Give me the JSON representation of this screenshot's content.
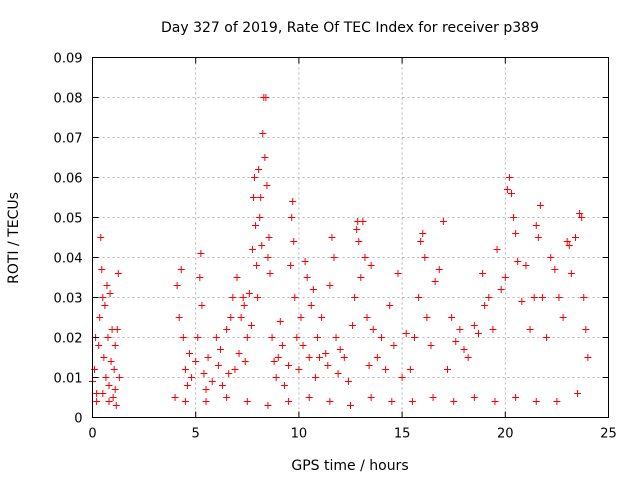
{
  "chart_data": {
    "type": "scatter",
    "title": "Day 327 of 2019, Rate Of TEC Index for receiver p389",
    "xlabel": "GPS time / hours",
    "ylabel": "ROTI / TECUs",
    "xlim": [
      0,
      25
    ],
    "ylim": [
      0,
      0.09
    ],
    "x_ticks": [
      0,
      5,
      10,
      15,
      20,
      25
    ],
    "x_tick_labels": [
      "0",
      "5",
      "10",
      "15",
      "20",
      "25"
    ],
    "y_ticks": [
      0,
      0.01,
      0.02,
      0.03,
      0.04,
      0.05,
      0.06,
      0.07,
      0.08,
      0.09
    ],
    "y_tick_labels": [
      "0",
      "0.01",
      "0.02",
      "0.03",
      "0.04",
      "0.05",
      "0.06",
      "0.07",
      "0.08",
      "0.09"
    ],
    "grid": true,
    "marker": "plus",
    "color": "#ff0000",
    "points": [
      [
        0.0,
        0.009
      ],
      [
        0.1,
        0.012
      ],
      [
        0.15,
        0.02
      ],
      [
        0.2,
        0.006
      ],
      [
        0.3,
        0.018
      ],
      [
        0.35,
        0.025
      ],
      [
        0.4,
        0.045
      ],
      [
        0.45,
        0.037
      ],
      [
        0.5,
        0.03
      ],
      [
        0.55,
        0.015
      ],
      [
        0.6,
        0.028
      ],
      [
        0.65,
        0.01
      ],
      [
        0.7,
        0.033
      ],
      [
        0.75,
        0.02
      ],
      [
        0.8,
        0.008
      ],
      [
        0.85,
        0.031
      ],
      [
        0.9,
        0.014
      ],
      [
        0.95,
        0.022
      ],
      [
        1.0,
        0.005
      ],
      [
        1.05,
        0.012
      ],
      [
        1.1,
        0.018
      ],
      [
        1.15,
        0.003
      ],
      [
        1.2,
        0.022
      ],
      [
        1.25,
        0.036
      ],
      [
        1.3,
        0.01
      ],
      [
        0.2,
        0.004
      ],
      [
        0.5,
        0.006
      ],
      [
        0.8,
        0.004
      ],
      [
        1.1,
        0.007
      ],
      [
        4.0,
        0.005
      ],
      [
        4.1,
        0.033
      ],
      [
        4.2,
        0.025
      ],
      [
        4.3,
        0.037
      ],
      [
        4.4,
        0.02
      ],
      [
        4.5,
        0.012
      ],
      [
        4.6,
        0.008
      ],
      [
        4.7,
        0.016
      ],
      [
        4.8,
        0.01
      ],
      [
        5.0,
        0.014
      ],
      [
        5.1,
        0.02
      ],
      [
        5.2,
        0.035
      ],
      [
        5.25,
        0.041
      ],
      [
        5.3,
        0.028
      ],
      [
        5.4,
        0.011
      ],
      [
        5.5,
        0.007
      ],
      [
        5.6,
        0.015
      ],
      [
        5.8,
        0.009
      ],
      [
        6.0,
        0.02
      ],
      [
        6.1,
        0.013
      ],
      [
        6.2,
        0.017
      ],
      [
        6.3,
        0.008
      ],
      [
        6.5,
        0.022
      ],
      [
        6.6,
        0.011
      ],
      [
        6.7,
        0.025
      ],
      [
        6.8,
        0.03
      ],
      [
        6.9,
        0.012
      ],
      [
        7.0,
        0.035
      ],
      [
        7.1,
        0.016
      ],
      [
        7.2,
        0.025
      ],
      [
        7.3,
        0.03
      ],
      [
        7.35,
        0.028
      ],
      [
        7.4,
        0.014
      ],
      [
        7.5,
        0.02
      ],
      [
        7.6,
        0.031
      ],
      [
        7.7,
        0.023
      ],
      [
        7.75,
        0.042
      ],
      [
        7.8,
        0.055
      ],
      [
        7.85,
        0.06
      ],
      [
        7.9,
        0.048
      ],
      [
        7.95,
        0.038
      ],
      [
        8.0,
        0.03
      ],
      [
        8.05,
        0.062
      ],
      [
        8.1,
        0.05
      ],
      [
        8.15,
        0.055
      ],
      [
        8.2,
        0.043
      ],
      [
        8.25,
        0.071
      ],
      [
        8.3,
        0.08
      ],
      [
        8.35,
        0.065
      ],
      [
        8.4,
        0.08
      ],
      [
        8.45,
        0.058
      ],
      [
        8.5,
        0.04
      ],
      [
        8.55,
        0.045
      ],
      [
        8.6,
        0.036
      ],
      [
        8.7,
        0.02
      ],
      [
        8.8,
        0.014
      ],
      [
        8.9,
        0.01
      ],
      [
        9.0,
        0.015
      ],
      [
        9.1,
        0.024
      ],
      [
        9.2,
        0.018
      ],
      [
        9.3,
        0.008
      ],
      [
        9.5,
        0.013
      ],
      [
        9.6,
        0.038
      ],
      [
        9.65,
        0.05
      ],
      [
        9.7,
        0.054
      ],
      [
        9.75,
        0.044
      ],
      [
        9.8,
        0.03
      ],
      [
        9.9,
        0.02
      ],
      [
        10.0,
        0.012
      ],
      [
        10.1,
        0.025
      ],
      [
        10.2,
        0.018
      ],
      [
        10.3,
        0.039
      ],
      [
        10.4,
        0.035
      ],
      [
        10.5,
        0.015
      ],
      [
        10.6,
        0.028
      ],
      [
        10.7,
        0.032
      ],
      [
        10.8,
        0.01
      ],
      [
        10.9,
        0.02
      ],
      [
        11.0,
        0.015
      ],
      [
        11.1,
        0.025
      ],
      [
        11.3,
        0.016
      ],
      [
        11.4,
        0.013
      ],
      [
        11.5,
        0.033
      ],
      [
        11.6,
        0.045
      ],
      [
        11.7,
        0.04
      ],
      [
        11.8,
        0.02
      ],
      [
        11.9,
        0.011
      ],
      [
        12.0,
        0.017
      ],
      [
        12.2,
        0.015
      ],
      [
        12.4,
        0.009
      ],
      [
        12.6,
        0.023
      ],
      [
        12.7,
        0.03
      ],
      [
        12.8,
        0.047
      ],
      [
        12.85,
        0.049
      ],
      [
        12.9,
        0.044
      ],
      [
        13.0,
        0.035
      ],
      [
        13.1,
        0.049
      ],
      [
        13.2,
        0.04
      ],
      [
        13.3,
        0.025
      ],
      [
        13.4,
        0.013
      ],
      [
        13.5,
        0.038
      ],
      [
        13.6,
        0.022
      ],
      [
        13.8,
        0.015
      ],
      [
        14.0,
        0.02
      ],
      [
        14.2,
        0.012
      ],
      [
        14.4,
        0.028
      ],
      [
        14.6,
        0.018
      ],
      [
        14.8,
        0.036
      ],
      [
        15.0,
        0.01
      ],
      [
        15.2,
        0.021
      ],
      [
        15.4,
        0.012
      ],
      [
        15.6,
        0.02
      ],
      [
        15.8,
        0.03
      ],
      [
        15.9,
        0.044
      ],
      [
        16.0,
        0.046
      ],
      [
        16.1,
        0.04
      ],
      [
        16.2,
        0.025
      ],
      [
        16.4,
        0.018
      ],
      [
        16.6,
        0.034
      ],
      [
        16.8,
        0.037
      ],
      [
        17.0,
        0.049
      ],
      [
        17.2,
        0.012
      ],
      [
        17.4,
        0.025
      ],
      [
        17.6,
        0.019
      ],
      [
        17.8,
        0.022
      ],
      [
        18.0,
        0.017
      ],
      [
        18.2,
        0.015
      ],
      [
        18.5,
        0.023
      ],
      [
        18.7,
        0.021
      ],
      [
        18.9,
        0.036
      ],
      [
        19.0,
        0.028
      ],
      [
        19.2,
        0.03
      ],
      [
        19.4,
        0.022
      ],
      [
        19.6,
        0.042
      ],
      [
        19.8,
        0.032
      ],
      [
        20.0,
        0.035
      ],
      [
        20.1,
        0.057
      ],
      [
        20.2,
        0.06
      ],
      [
        20.3,
        0.056
      ],
      [
        20.4,
        0.05
      ],
      [
        20.5,
        0.046
      ],
      [
        20.6,
        0.039
      ],
      [
        20.8,
        0.029
      ],
      [
        21.0,
        0.038
      ],
      [
        21.2,
        0.022
      ],
      [
        21.4,
        0.03
      ],
      [
        21.5,
        0.048
      ],
      [
        21.6,
        0.045
      ],
      [
        21.7,
        0.053
      ],
      [
        21.8,
        0.03
      ],
      [
        22.0,
        0.02
      ],
      [
        22.2,
        0.04
      ],
      [
        22.4,
        0.037
      ],
      [
        22.6,
        0.03
      ],
      [
        22.8,
        0.025
      ],
      [
        23.0,
        0.044
      ],
      [
        23.1,
        0.043
      ],
      [
        23.2,
        0.036
      ],
      [
        23.4,
        0.045
      ],
      [
        23.6,
        0.051
      ],
      [
        23.7,
        0.05
      ],
      [
        23.8,
        0.03
      ],
      [
        23.9,
        0.022
      ],
      [
        24.0,
        0.015
      ],
      [
        4.5,
        0.004
      ],
      [
        5.5,
        0.004
      ],
      [
        6.5,
        0.005
      ],
      [
        7.5,
        0.004
      ],
      [
        8.5,
        0.003
      ],
      [
        9.5,
        0.004
      ],
      [
        10.5,
        0.005
      ],
      [
        11.5,
        0.004
      ],
      [
        12.5,
        0.003
      ],
      [
        13.5,
        0.005
      ],
      [
        14.5,
        0.004
      ],
      [
        15.5,
        0.004
      ],
      [
        16.5,
        0.005
      ],
      [
        17.5,
        0.004
      ],
      [
        18.5,
        0.005
      ],
      [
        19.5,
        0.004
      ],
      [
        20.5,
        0.005
      ],
      [
        21.5,
        0.004
      ],
      [
        22.5,
        0.004
      ],
      [
        23.5,
        0.006
      ]
    ]
  }
}
